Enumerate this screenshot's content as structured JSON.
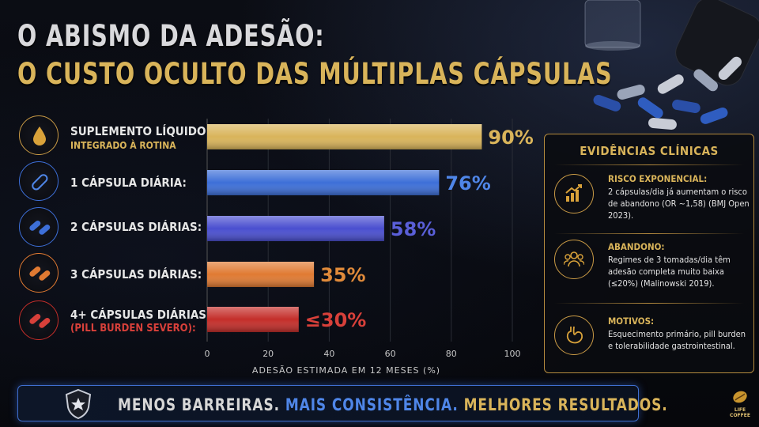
{
  "title_line1": "O ABISMO DA ADESÃO:",
  "title_line2": "O CUSTO OCULTO DAS MÚLTIPLAS CÁPSULAS",
  "rows": [
    {
      "label": "SUPLEMENTO LÍQUIDO:",
      "sub": "INTEGRADO À ROTINA",
      "icon": "liquid-drop-icon"
    },
    {
      "label": "1 CÁPSULA DIÁRIA:",
      "sub": "",
      "icon": "capsule-icon"
    },
    {
      "label": "2 CÁPSULAS DIÁRIAS:",
      "sub": "",
      "icon": "two-capsules-icon"
    },
    {
      "label": "3 CÁPSULAS DIÁRIAS:",
      "sub": "",
      "icon": "three-capsules-icon"
    },
    {
      "label": "4+ CÁPSULAS DIÁRIAS",
      "sub": "(PILL BURDEN SEVERO):",
      "icon": "many-capsules-icon"
    }
  ],
  "chart_data": {
    "type": "bar",
    "orientation": "horizontal",
    "categories": [
      "SUPLEMENTO LÍQUIDO: INTEGRADO À ROTINA",
      "1 CÁPSULA DIÁRIA:",
      "2 CÁPSULAS DIÁRIAS:",
      "3 CÁPSULAS DIÁRIAS:",
      "4+ CÁPSULAS DIÁRIAS (PILL BURDEN SEVERO):"
    ],
    "values": [
      90,
      76,
      58,
      35,
      30
    ],
    "value_labels": [
      "90%",
      "76%",
      "58%",
      "35%",
      "≤30%"
    ],
    "colors": [
      "#d9b45a",
      "#3d6fd8",
      "#4a4fd0",
      "#e07a32",
      "#c42e2a"
    ],
    "label_colors": [
      "#d9b45a",
      "#4f86e8",
      "#5a5fd8",
      "#e08a3a",
      "#d8403a"
    ],
    "xlabel": "ADESÃO ESTIMADA EM 12 MESES (%)",
    "xticks": [
      0,
      20,
      40,
      60,
      80,
      100
    ],
    "xlim": [
      0,
      100
    ],
    "grid": true
  },
  "evidence": {
    "title": "EVIDÊNCIAS CLÍNICAS",
    "items": [
      {
        "icon": "growth-chart-icon",
        "head": "RISCO EXPONENCIAL:",
        "text": "2 cápsulas/dia já aumentam o risco de abandono (OR ~1,58) (BMJ Open 2023)."
      },
      {
        "icon": "people-group-icon",
        "head": "ABANDONO:",
        "text": "Regimes de 3 tomadas/dia têm adesão completa muito baixa (≤20%) (Malinowski 2019)."
      },
      {
        "icon": "stomach-icon",
        "head": "MOTIVOS:",
        "text": "Esquecimento primário, pill burden e tolerabilidade gastrointestinal."
      }
    ]
  },
  "footer": {
    "part1": "MENOS BARREIRAS.",
    "part2": "MAIS CONSISTÊNCIA.",
    "part3": "MELHORES RESULTADOS."
  },
  "logo": {
    "line1": "LIFE",
    "line2": "COFFEE"
  }
}
